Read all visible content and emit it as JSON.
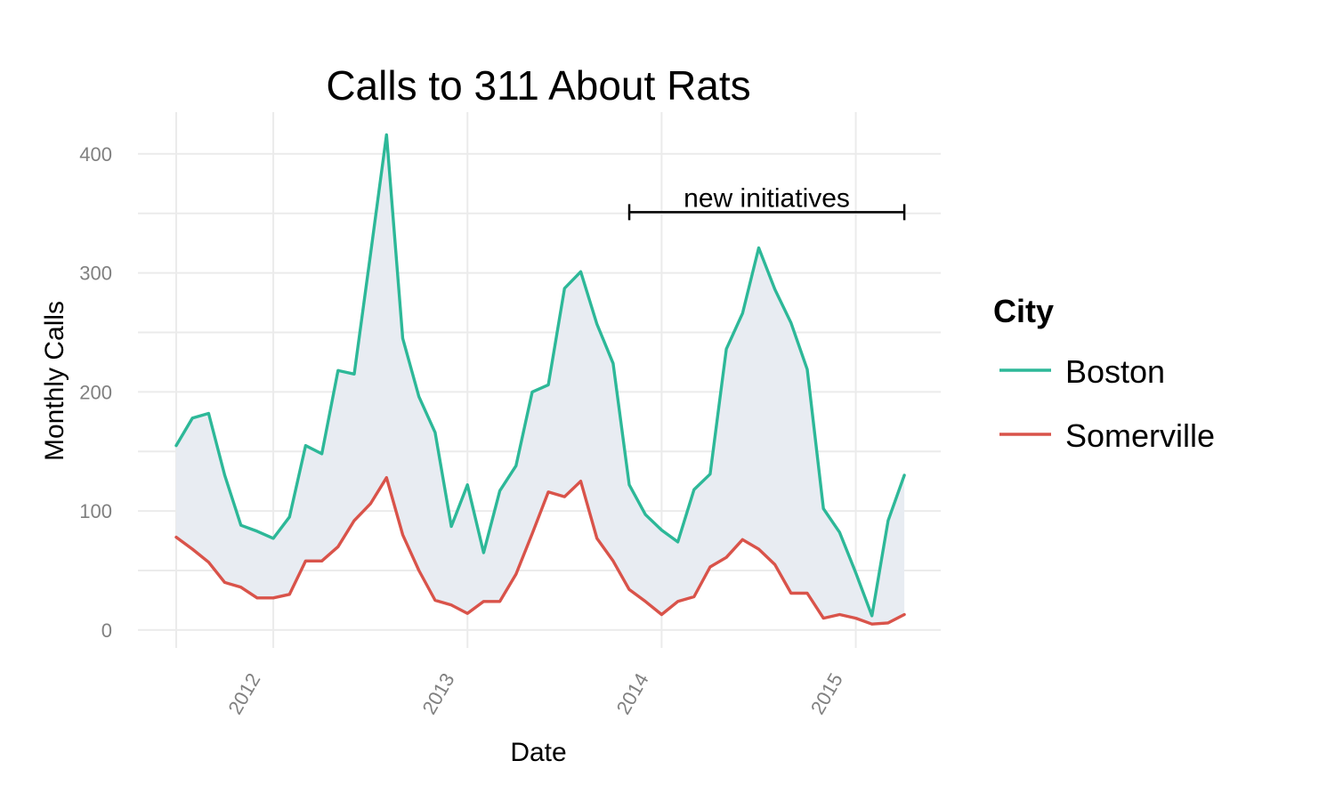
{
  "chart_data": {
    "type": "line",
    "title": "Calls to 311 About Rats",
    "xlabel": "Date",
    "ylabel": "Monthly Calls",
    "ylim": [
      -15,
      435
    ],
    "y_ticks": [
      0,
      100,
      200,
      300,
      400
    ],
    "x_ticks": [
      {
        "label": "2012",
        "month_index": 6
      },
      {
        "label": "2013",
        "month_index": 18
      },
      {
        "label": "2014",
        "month_index": 30
      },
      {
        "label": "2015",
        "month_index": 42
      }
    ],
    "months": [
      "2011-07",
      "2011-08",
      "2011-09",
      "2011-10",
      "2011-11",
      "2011-12",
      "2012-01",
      "2012-02",
      "2012-03",
      "2012-04",
      "2012-05",
      "2012-06",
      "2012-07",
      "2012-08",
      "2012-09",
      "2012-10",
      "2012-11",
      "2012-12",
      "2013-01",
      "2013-02",
      "2013-03",
      "2013-04",
      "2013-05",
      "2013-06",
      "2013-07",
      "2013-08",
      "2013-09",
      "2013-10",
      "2013-11",
      "2013-12",
      "2014-01",
      "2014-02",
      "2014-03",
      "2014-04",
      "2014-05",
      "2014-06",
      "2014-07",
      "2014-08",
      "2014-09",
      "2014-10",
      "2014-11",
      "2014-12",
      "2015-01",
      "2015-02",
      "2015-03",
      "2015-04"
    ],
    "series": [
      {
        "name": "Boston",
        "color": "#2db898",
        "values": [
          155,
          178,
          182,
          130,
          88,
          83,
          77,
          95,
          155,
          148,
          218,
          215,
          315,
          416,
          245,
          196,
          166,
          87,
          122,
          65,
          117,
          138,
          200,
          206,
          287,
          301,
          257,
          224,
          122,
          97,
          84,
          74,
          118,
          131,
          236,
          266,
          321,
          286,
          258,
          219,
          102,
          82,
          48,
          12,
          92,
          130
        ]
      },
      {
        "name": "Somerville",
        "color": "#d9534a",
        "values": [
          78,
          68,
          57,
          40,
          36,
          27,
          27,
          30,
          58,
          58,
          70,
          92,
          106,
          128,
          80,
          50,
          25,
          21,
          14,
          24,
          24,
          47,
          81,
          116,
          112,
          125,
          77,
          58,
          34,
          24,
          13,
          24,
          28,
          53,
          61,
          76,
          68,
          55,
          31,
          31,
          10,
          13,
          10,
          5,
          6,
          13
        ]
      }
    ],
    "ribbon_fill": "#e8ecf2",
    "annotation": {
      "label": "new initiatives",
      "from_month_index": 28,
      "to_month_index": 45,
      "y": 351
    },
    "legend": {
      "title": "City",
      "position": "right"
    }
  }
}
